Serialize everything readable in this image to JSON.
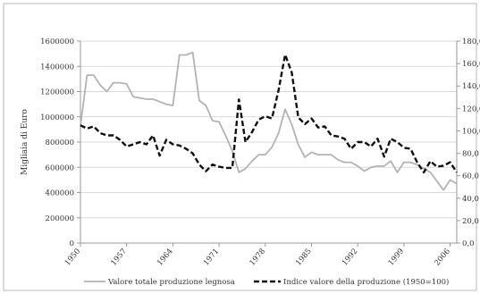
{
  "chart_data": {
    "type": "line",
    "title": "",
    "ylabel": "Migliaia di Euro",
    "y2label": "",
    "ylim": [
      0,
      1600000
    ],
    "y2lim": [
      0,
      180
    ],
    "yticks": [
      "0",
      "200000",
      "400000",
      "600000",
      "800000",
      "1000000",
      "1200000",
      "1400000",
      "1600000"
    ],
    "y2ticks": [
      "0,0",
      "20,0",
      "40,0",
      "60,0",
      "80,0",
      "100,0",
      "120,0",
      "140,0",
      "160,0",
      "180,0"
    ],
    "xticks": [
      "1950",
      "1957",
      "1964",
      "1971",
      "1978",
      "1985",
      "1992",
      "1999",
      "2006"
    ],
    "grid": true,
    "legend_position": "bottom",
    "x": [
      1950,
      1951,
      1952,
      1953,
      1954,
      1955,
      1956,
      1957,
      1958,
      1959,
      1960,
      1961,
      1962,
      1963,
      1964,
      1965,
      1966,
      1967,
      1968,
      1969,
      1970,
      1971,
      1972,
      1973,
      1974,
      1975,
      1976,
      1977,
      1978,
      1979,
      1980,
      1981,
      1982,
      1983,
      1984,
      1985,
      1986,
      1987,
      1988,
      1989,
      1990,
      1991,
      1992,
      1993,
      1994,
      1995,
      1996,
      1997,
      1998,
      1999,
      2000,
      2001,
      2002,
      2003,
      2004,
      2005,
      2006,
      2007
    ],
    "series": [
      {
        "name": "Valore totale produzione legnosa",
        "axis": "left",
        "color": "#b3b3b3",
        "dash": "solid",
        "values": [
          930000,
          1330000,
          1330000,
          1250000,
          1200000,
          1270000,
          1270000,
          1260000,
          1160000,
          1150000,
          1140000,
          1140000,
          1120000,
          1100000,
          1090000,
          1490000,
          1490000,
          1510000,
          1130000,
          1090000,
          970000,
          960000,
          850000,
          730000,
          560000,
          590000,
          650000,
          700000,
          700000,
          760000,
          870000,
          1060000,
          940000,
          780000,
          680000,
          720000,
          700000,
          700000,
          700000,
          660000,
          640000,
          640000,
          610000,
          570000,
          600000,
          610000,
          610000,
          650000,
          560000,
          640000,
          640000,
          620000,
          590000,
          560000,
          490000,
          420000,
          500000,
          470000
        ]
      },
      {
        "name": "Indice valore della produzione (1950=100)",
        "axis": "right",
        "color": "#111111",
        "dash": "dashed",
        "values": [
          105,
          102,
          104,
          98,
          96,
          96,
          92,
          86,
          88,
          90,
          88,
          96,
          78,
          92,
          88,
          87,
          84,
          80,
          70,
          64,
          70,
          68,
          67,
          67,
          128,
          90,
          99,
          110,
          113,
          111,
          136,
          168,
          152,
          112,
          106,
          111,
          103,
          104,
          96,
          95,
          93,
          84,
          90,
          90,
          86,
          93,
          77,
          93,
          90,
          85,
          84,
          72,
          63,
          73,
          68,
          69,
          72,
          63
        ]
      }
    ]
  }
}
